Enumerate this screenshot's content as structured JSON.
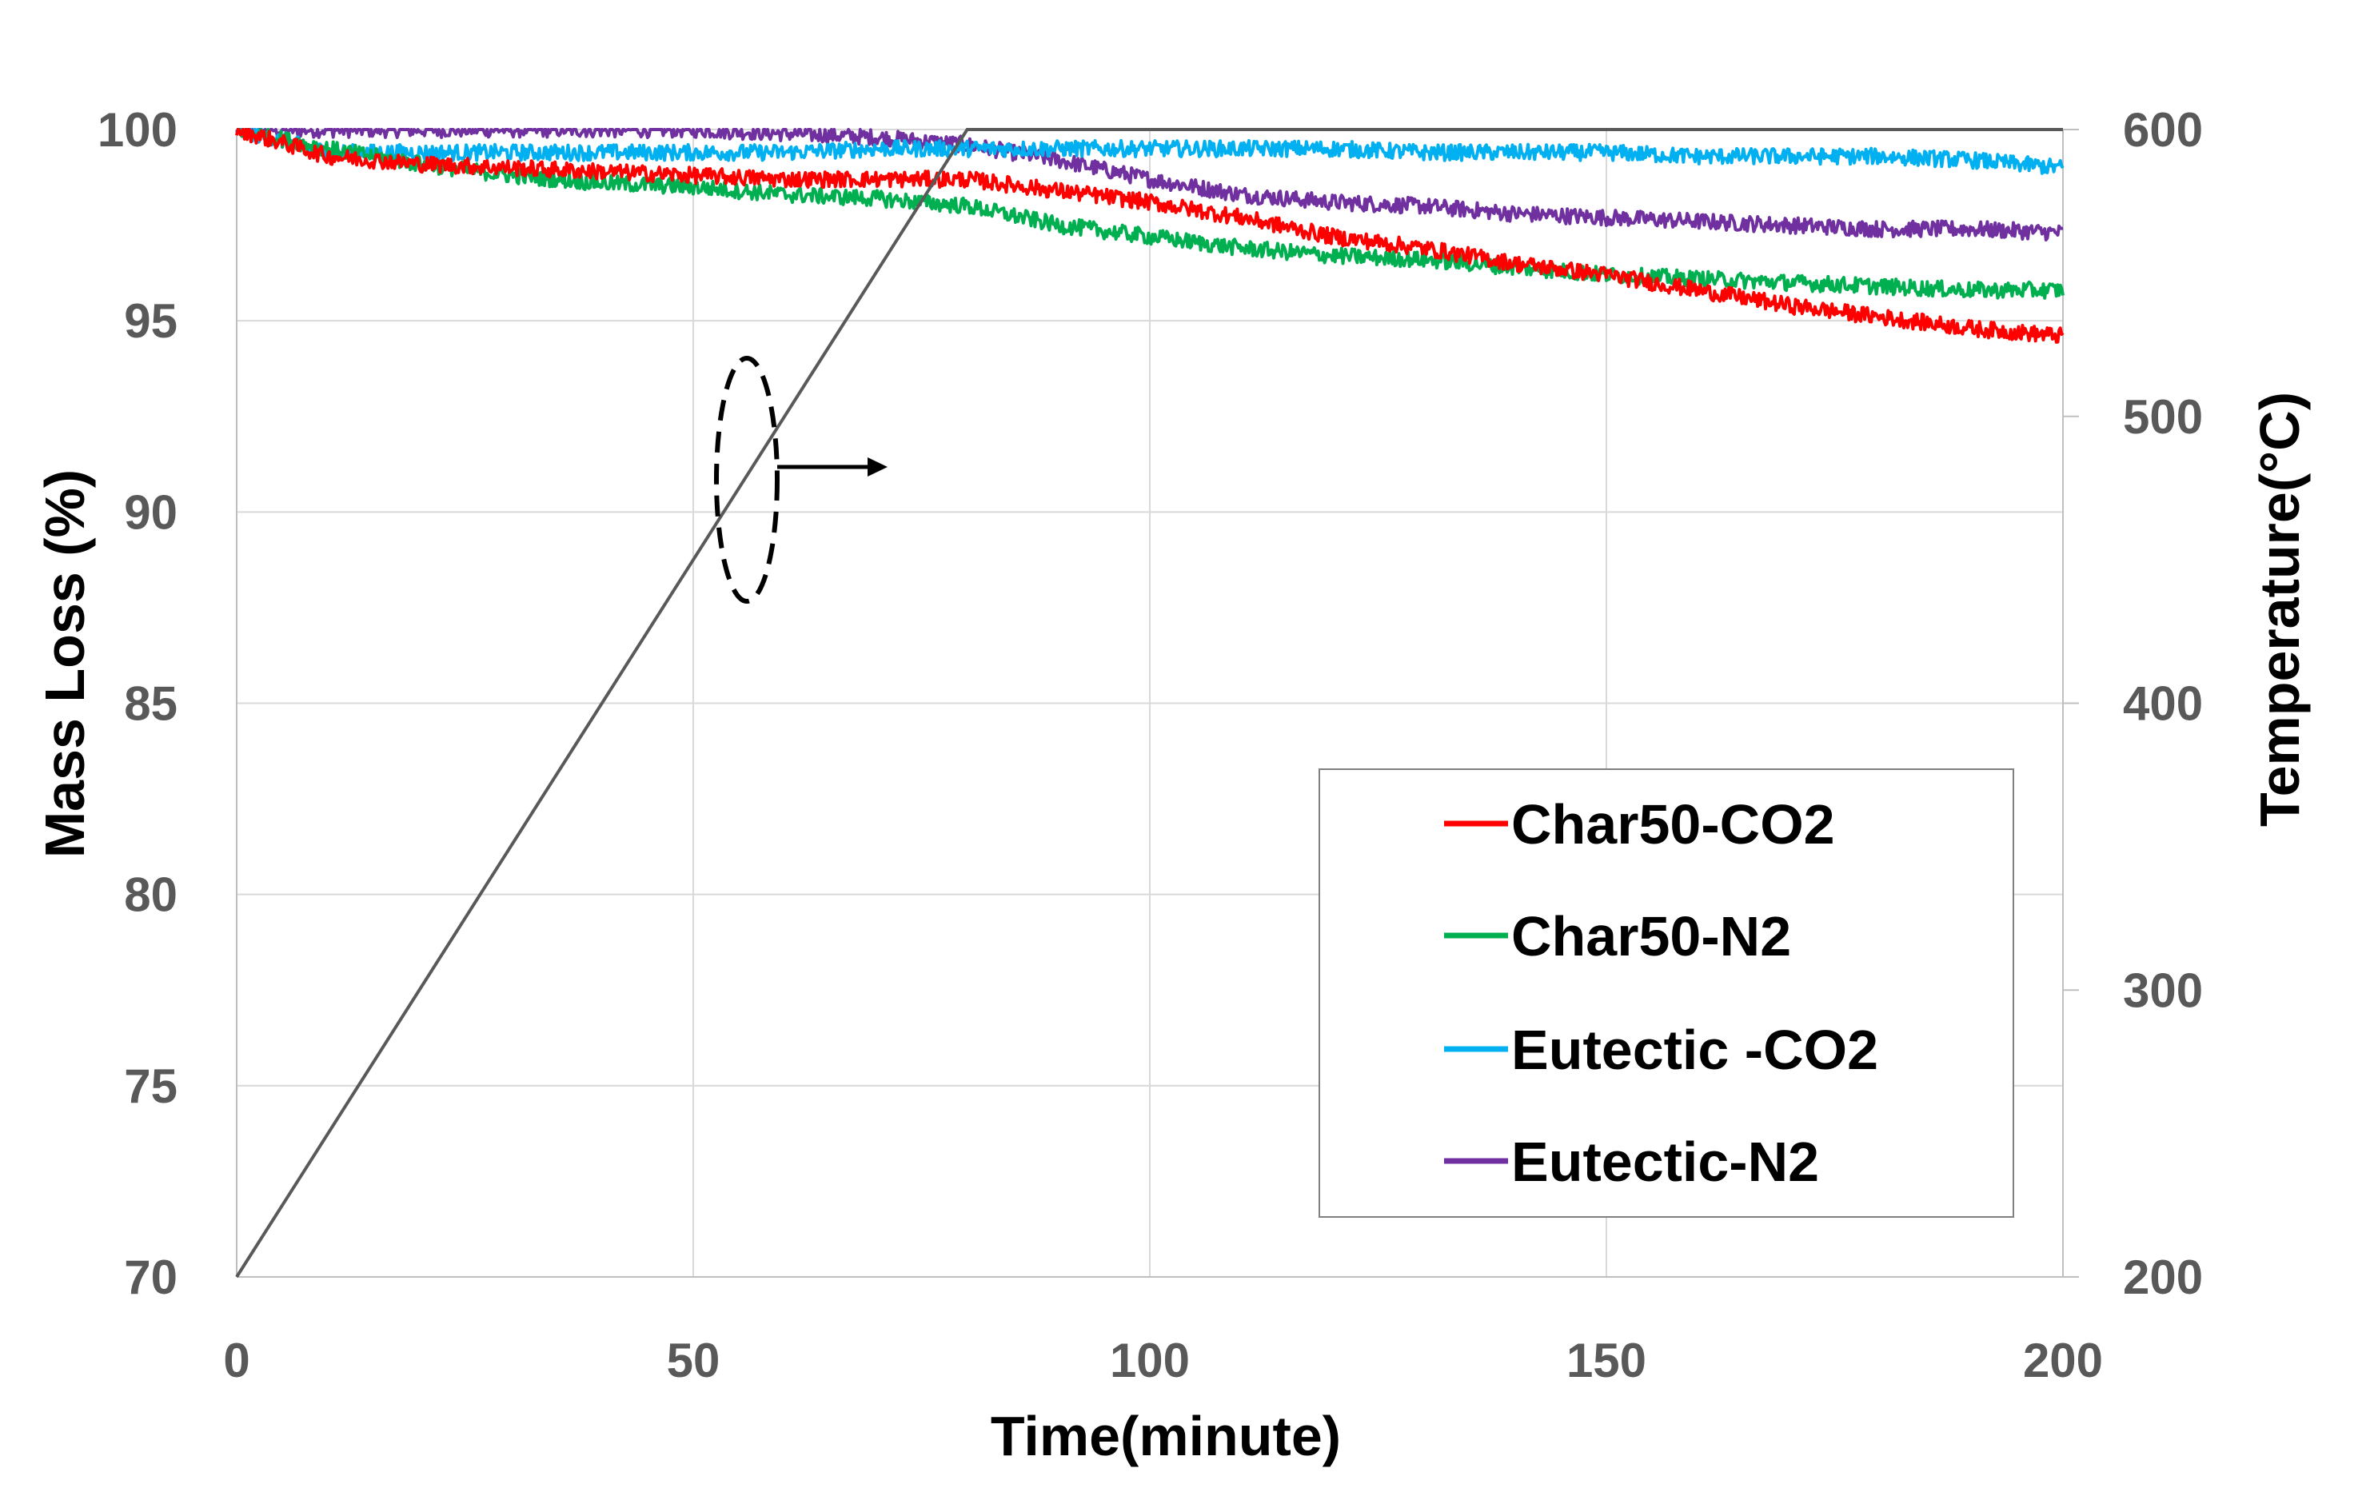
{
  "chart_data": {
    "type": "line",
    "title": "",
    "xlabel": "Time(minute)",
    "ylabel": "Mass Loss (%)",
    "y2label": "Temperature(°C)",
    "xlim": [
      0,
      200
    ],
    "ylim": [
      70,
      100
    ],
    "y2lim": [
      200,
      600
    ],
    "x_ticks": [
      "0",
      "50",
      "100",
      "150",
      "200"
    ],
    "y_ticks": [
      "70",
      "75",
      "80",
      "85",
      "90",
      "95",
      "100"
    ],
    "y2_ticks": [
      "200",
      "300",
      "400",
      "500",
      "600"
    ],
    "grid": true,
    "legend_position": "bottom-right",
    "series": [
      {
        "name": "Char50-CO2",
        "axis": "left",
        "color": "#ff0000",
        "x": [
          0,
          10,
          20,
          30,
          40,
          50,
          60,
          70,
          80,
          90,
          100,
          110,
          120,
          130,
          140,
          150,
          160,
          170,
          180,
          190,
          200
        ],
        "y": [
          100,
          99.3,
          99.1,
          99.0,
          98.9,
          98.8,
          98.7,
          98.7,
          98.7,
          98.4,
          98.1,
          97.7,
          97.2,
          96.9,
          96.5,
          96.2,
          95.8,
          95.4,
          95.1,
          94.8,
          94.6
        ]
      },
      {
        "name": "Char50-N2",
        "axis": "left",
        "color": "#00b050",
        "x": [
          0,
          10,
          20,
          30,
          40,
          50,
          60,
          70,
          80,
          90,
          100,
          110,
          120,
          130,
          140,
          150,
          160,
          170,
          180,
          190,
          200
        ],
        "y": [
          100,
          99.5,
          99.1,
          98.8,
          98.6,
          98.5,
          98.3,
          98.2,
          98.0,
          97.5,
          97.2,
          96.9,
          96.7,
          96.6,
          96.4,
          96.2,
          96.1,
          96.0,
          95.9,
          95.8,
          95.8
        ]
      },
      {
        "name": "Eutectic -CO2",
        "axis": "left",
        "color": "#00b0f0",
        "x": [
          0,
          10,
          20,
          30,
          40,
          50,
          60,
          70,
          80,
          90,
          100,
          110,
          120,
          130,
          140,
          150,
          160,
          170,
          180,
          190,
          200
        ],
        "y": [
          100,
          99.4,
          99.4,
          99.4,
          99.4,
          99.4,
          99.4,
          99.5,
          99.5,
          99.5,
          99.5,
          99.5,
          99.5,
          99.4,
          99.4,
          99.4,
          99.3,
          99.3,
          99.3,
          99.2,
          99.0
        ]
      },
      {
        "name": "Eutectic-N2",
        "axis": "left",
        "color": "#7030a0",
        "x": [
          0,
          10,
          20,
          30,
          40,
          50,
          60,
          70,
          80,
          90,
          100,
          110,
          120,
          130,
          140,
          150,
          160,
          170,
          180,
          190,
          200
        ],
        "y": [
          100,
          100,
          100,
          100,
          100,
          100,
          99.9,
          99.8,
          99.6,
          99.2,
          98.7,
          98.3,
          98.1,
          98.0,
          97.8,
          97.7,
          97.6,
          97.5,
          97.4,
          97.4,
          97.3
        ]
      },
      {
        "name": "Temperature",
        "axis": "right",
        "color": "#595959",
        "x": [
          0,
          80,
          200
        ],
        "y": [
          200,
          600,
          600
        ]
      }
    ],
    "annotation": "dashed ellipse around temperature line with arrow pointing to right axis"
  },
  "colors": {
    "grid": "#d9d9d9",
    "axis": "#bfbfbf",
    "tick_text": "#595959",
    "title_text": "#000000"
  }
}
